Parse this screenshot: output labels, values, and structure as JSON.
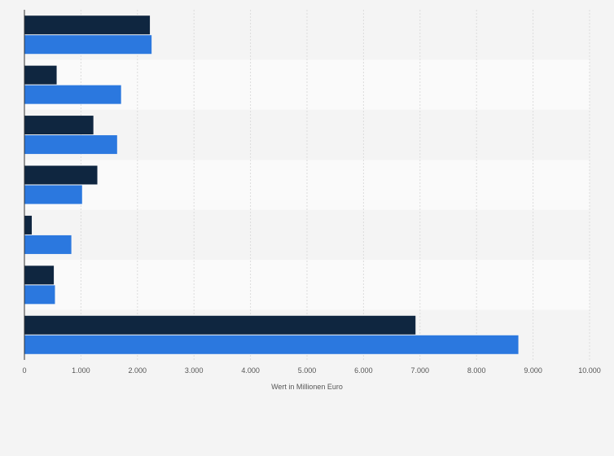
{
  "chart_data": {
    "type": "bar",
    "orientation": "horizontal",
    "categories": [
      "",
      "",
      "",
      "",
      "",
      "",
      ""
    ],
    "series": [
      {
        "values": [
          2220,
          570,
          1220,
          1290,
          130,
          520,
          6920
        ]
      },
      {
        "values": [
          2250,
          1710,
          1640,
          1020,
          830,
          540,
          8740
        ]
      }
    ],
    "series_colors": [
      "#0f2640",
      "#2b78df"
    ],
    "xlabel": "Wert in Millionen Euro",
    "xlim": [
      0,
      10000
    ],
    "xticks": [
      0,
      1000,
      2000,
      3000,
      4000,
      5000,
      6000,
      7000,
      8000,
      9000,
      10000
    ],
    "xtick_labels": [
      "0",
      "1.000",
      "2.000",
      "3.000",
      "4.000",
      "5.000",
      "6.000",
      "7.000",
      "8.000",
      "9.000",
      "10.000"
    ],
    "grid": true,
    "legend": "none"
  }
}
